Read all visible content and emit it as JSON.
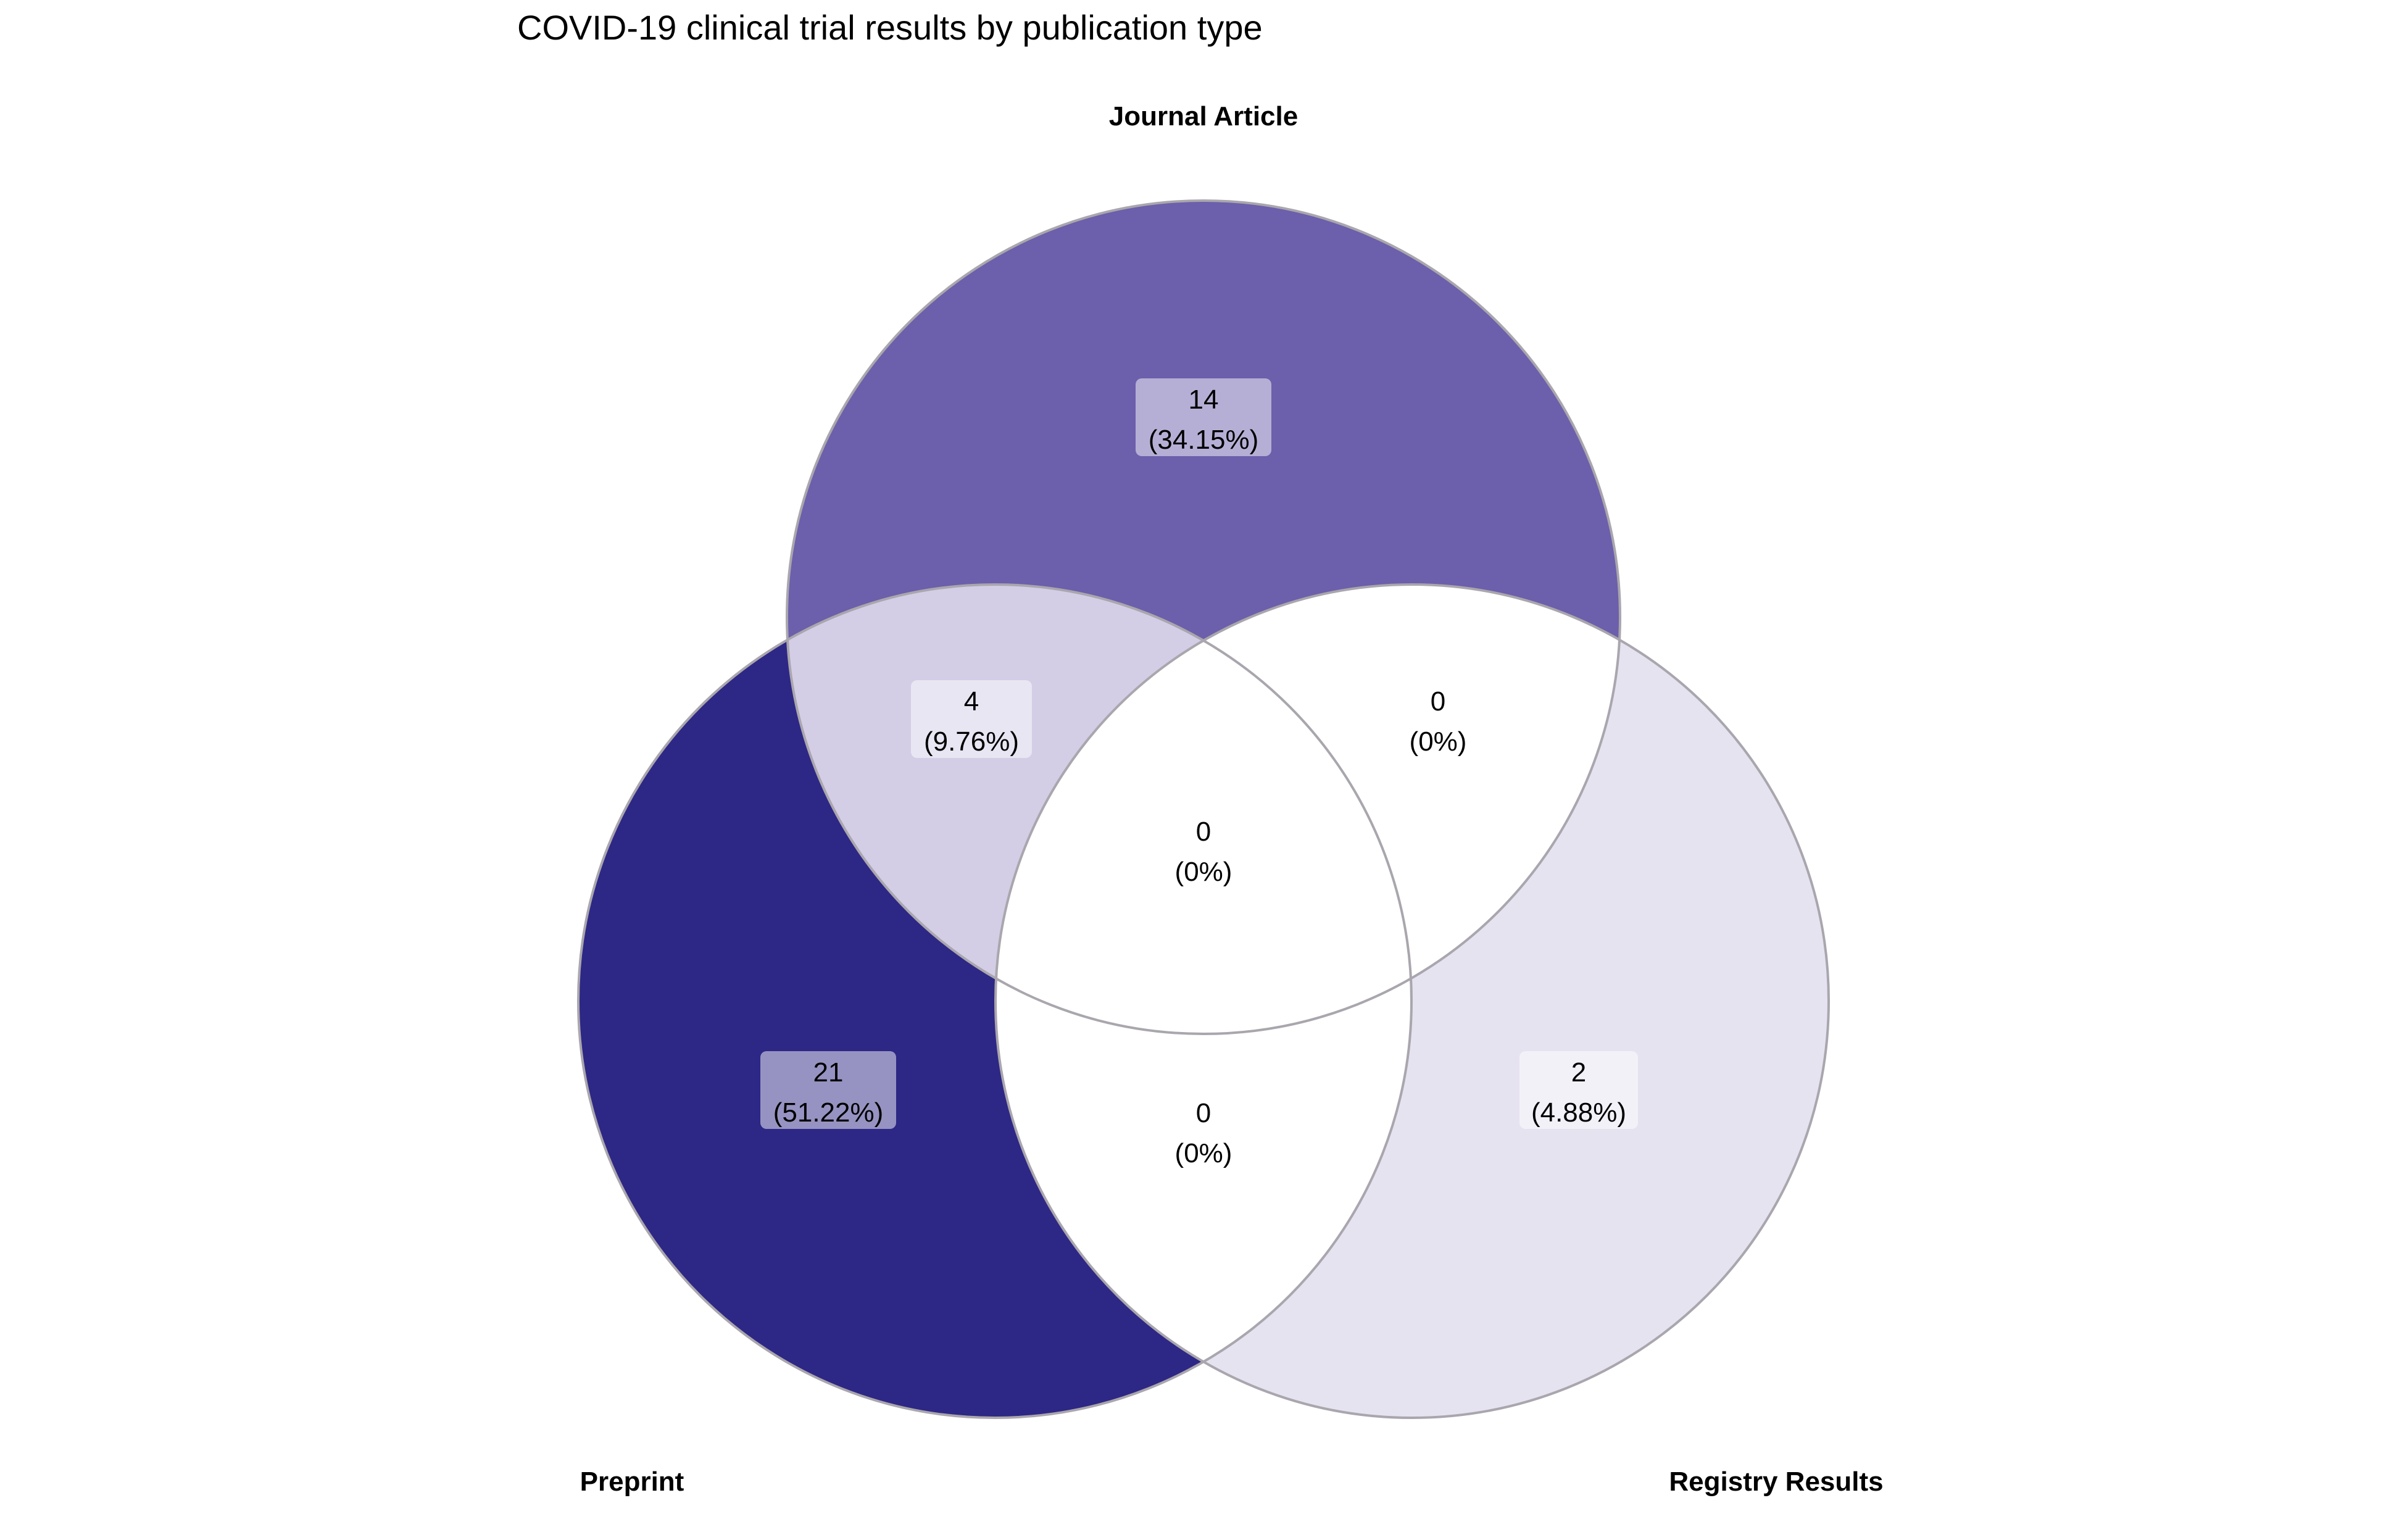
{
  "title": "COVID-19 clinical trial results by publication type",
  "colors": {
    "journal_only": "#6c5fab",
    "preprint_only": "#2d2785",
    "registry_only": "#e6e3f1",
    "journal_preprint": "#d3cde6",
    "empty_region": "#ffffff",
    "outline": "#aaa6ad"
  },
  "sets": [
    {
      "key": "journal",
      "label": "Journal Article"
    },
    {
      "key": "preprint",
      "label": "Preprint"
    },
    {
      "key": "registry",
      "label": "Registry Results"
    }
  ],
  "regions": [
    {
      "key": "journal_only",
      "count": "14",
      "percent": "(34.15%)",
      "boxed": true
    },
    {
      "key": "journal_preprint",
      "count": "4",
      "percent": "(9.76%)",
      "boxed": true
    },
    {
      "key": "journal_registry",
      "count": "0",
      "percent": "(0%)",
      "boxed": false
    },
    {
      "key": "all_three",
      "count": "0",
      "percent": "(0%)",
      "boxed": false
    },
    {
      "key": "preprint_only",
      "count": "21",
      "percent": "(51.22%)",
      "boxed": true
    },
    {
      "key": "preprint_registry",
      "count": "0",
      "percent": "(0%)",
      "boxed": false
    },
    {
      "key": "registry_only",
      "count": "2",
      "percent": "(4.88%)",
      "boxed": true
    }
  ]
}
